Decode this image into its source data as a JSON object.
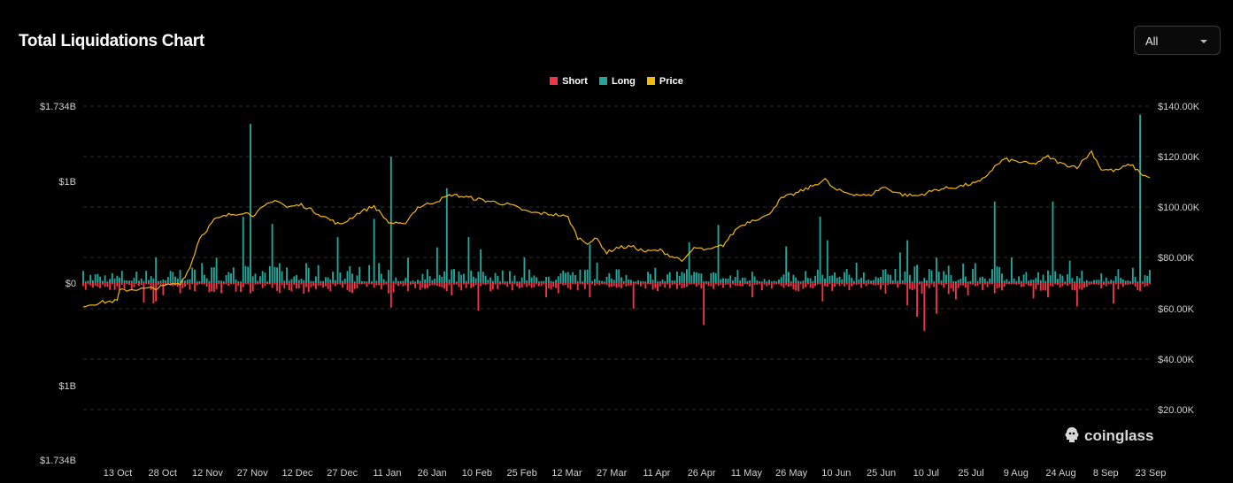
{
  "title": "Total Liquidations Chart",
  "range_select": {
    "value": "All"
  },
  "watermark": "coinglass",
  "colors": {
    "short": "#f23645",
    "long": "#26a69a",
    "price": "#f0b90b",
    "grid": "#2b2b2b",
    "background": "#000000"
  },
  "chart_data": {
    "type": "bar",
    "legend_position": "top-center",
    "grid": true,
    "series": [
      {
        "name": "Short",
        "kind": "bar",
        "axis": "left",
        "color": "#f23645"
      },
      {
        "name": "Long",
        "kind": "bar",
        "axis": "left",
        "color": "#26a69a"
      },
      {
        "name": "Price",
        "kind": "line",
        "axis": "right",
        "color": "#f0b90b"
      }
    ],
    "x_ticks": [
      "13 Oct",
      "28 Oct",
      "12 Nov",
      "27 Nov",
      "12 Dec",
      "27 Dec",
      "11 Jan",
      "26 Jan",
      "10 Feb",
      "25 Feb",
      "12 Mar",
      "27 Mar",
      "11 Apr",
      "26 Apr",
      "11 May",
      "26 May",
      "10 Jun",
      "25 Jun",
      "10 Jul",
      "25 Jul",
      "9 Aug",
      "24 Aug",
      "8 Sep",
      "23 Sep"
    ],
    "y_left_ticks": [
      "$1.734B",
      "$1B",
      "$0",
      "$1B",
      "$1.734B"
    ],
    "y_left_range": [
      -1.734,
      1.734
    ],
    "y_left_unit": "billions USD (long plotted up, short plotted down)",
    "y_right_ticks": [
      "$140.00K",
      "$120.00K",
      "$100.00K",
      "$80.00K",
      "$60.00K",
      "$40.00K",
      "$20.00K"
    ],
    "y_right_range": [
      20000,
      140000
    ],
    "highlights": {
      "long": [
        [
          0,
          0.12
        ],
        [
          6,
          0.09
        ],
        [
          30,
          0.25
        ],
        [
          55,
          0.25
        ],
        [
          66,
          0.65
        ],
        [
          69,
          1.56
        ],
        [
          78,
          0.58
        ],
        [
          105,
          0.45
        ],
        [
          120,
          0.63
        ],
        [
          127,
          1.24
        ],
        [
          134,
          0.25
        ],
        [
          146,
          0.35
        ],
        [
          150,
          0.93
        ],
        [
          159,
          0.45
        ],
        [
          164,
          0.33
        ],
        [
          182,
          0.25
        ],
        [
          209,
          0.38
        ],
        [
          212,
          0.2
        ],
        [
          236,
          0.15
        ],
        [
          250,
          0.4
        ],
        [
          262,
          0.57
        ],
        [
          290,
          0.36
        ],
        [
          304,
          0.65
        ],
        [
          307,
          0.42
        ],
        [
          319,
          0.2
        ],
        [
          337,
          0.3
        ],
        [
          340,
          0.42
        ],
        [
          352,
          0.25
        ],
        [
          376,
          0.8
        ],
        [
          383,
          0.25
        ],
        [
          400,
          0.8
        ],
        [
          407,
          0.22
        ],
        [
          433,
          0.15
        ],
        [
          436,
          1.65
        ]
      ],
      "short": [
        [
          0,
          -0.03
        ],
        [
          25,
          -0.19
        ],
        [
          29,
          -0.2
        ],
        [
          30,
          -0.18
        ],
        [
          33,
          -0.12
        ],
        [
          40,
          -0.1
        ],
        [
          46,
          -0.08
        ],
        [
          57,
          -0.1
        ],
        [
          70,
          -0.08
        ],
        [
          85,
          -0.07
        ],
        [
          102,
          -0.08
        ],
        [
          127,
          -0.24
        ],
        [
          137,
          -0.05
        ],
        [
          152,
          -0.12
        ],
        [
          163,
          -0.27
        ],
        [
          168,
          -0.08
        ],
        [
          191,
          -0.14
        ],
        [
          196,
          -0.1
        ],
        [
          209,
          -0.14
        ],
        [
          227,
          -0.25
        ],
        [
          256,
          -0.41
        ],
        [
          276,
          -0.14
        ],
        [
          280,
          -0.07
        ],
        [
          305,
          -0.18
        ],
        [
          340,
          -0.22
        ],
        [
          344,
          -0.33
        ],
        [
          347,
          -0.47
        ],
        [
          352,
          -0.3
        ],
        [
          360,
          -0.16
        ],
        [
          365,
          -0.12
        ],
        [
          376,
          -0.1
        ],
        [
          392,
          -0.15
        ],
        [
          398,
          -0.14
        ],
        [
          410,
          -0.23
        ],
        [
          425,
          -0.2
        ],
        [
          436,
          -0.08
        ]
      ]
    },
    "price_points": [
      [
        0,
        61000
      ],
      [
        8,
        62500
      ],
      [
        14,
        63000
      ],
      [
        15,
        67000
      ],
      [
        20,
        67500
      ],
      [
        30,
        68000
      ],
      [
        36,
        69500
      ],
      [
        40,
        70000
      ],
      [
        44,
        76000
      ],
      [
        48,
        88000
      ],
      [
        50,
        90000
      ],
      [
        54,
        95000
      ],
      [
        60,
        97000
      ],
      [
        66,
        98000
      ],
      [
        70,
        97000
      ],
      [
        76,
        101000
      ],
      [
        80,
        103000
      ],
      [
        84,
        100000
      ],
      [
        90,
        101000
      ],
      [
        98,
        97000
      ],
      [
        106,
        93000
      ],
      [
        114,
        98000
      ],
      [
        120,
        100500
      ],
      [
        126,
        94000
      ],
      [
        132,
        93000
      ],
      [
        138,
        100000
      ],
      [
        146,
        102500
      ],
      [
        152,
        105000
      ],
      [
        158,
        104000
      ],
      [
        164,
        103000
      ],
      [
        170,
        102000
      ],
      [
        176,
        101000
      ],
      [
        184,
        98000
      ],
      [
        190,
        97500
      ],
      [
        196,
        97000
      ],
      [
        200,
        96000
      ],
      [
        204,
        88000
      ],
      [
        208,
        86000
      ],
      [
        212,
        87500
      ],
      [
        216,
        82000
      ],
      [
        220,
        84000
      ],
      [
        226,
        84500
      ],
      [
        232,
        82500
      ],
      [
        238,
        83000
      ],
      [
        243,
        80500
      ],
      [
        248,
        79000
      ],
      [
        252,
        84000
      ],
      [
        258,
        83000
      ],
      [
        264,
        85000
      ],
      [
        270,
        92000
      ],
      [
        276,
        95000
      ],
      [
        282,
        96500
      ],
      [
        288,
        103500
      ],
      [
        294,
        105500
      ],
      [
        300,
        108000
      ],
      [
        306,
        111000
      ],
      [
        310,
        107000
      ],
      [
        316,
        105500
      ],
      [
        324,
        104500
      ],
      [
        330,
        108000
      ],
      [
        338,
        105000
      ],
      [
        344,
        104500
      ],
      [
        352,
        107000
      ],
      [
        360,
        108000
      ],
      [
        370,
        110000
      ],
      [
        376,
        116000
      ],
      [
        380,
        119000
      ],
      [
        386,
        118000
      ],
      [
        392,
        117000
      ],
      [
        398,
        120000
      ],
      [
        404,
        117000
      ],
      [
        410,
        116000
      ],
      [
        416,
        122000
      ],
      [
        420,
        115000
      ],
      [
        426,
        114500
      ],
      [
        432,
        117000
      ],
      [
        437,
        113000
      ],
      [
        440,
        111500
      ]
    ],
    "bar_count": 441
  }
}
